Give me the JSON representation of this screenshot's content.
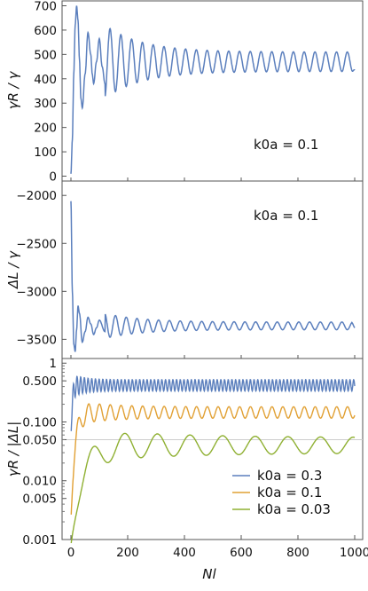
{
  "colors": {
    "blue": "#5b7fbd",
    "orange": "#e1a033",
    "green": "#8fb032",
    "frame": "#555555",
    "gridline": "#cccccc"
  },
  "chart_data": [
    {
      "type": "line",
      "ylabel": "γR / γ",
      "annotation": "k0a = 0.1",
      "xlim": [
        0,
        1000
      ],
      "ylim": [
        -20,
        720
      ],
      "yticks": [
        0,
        100,
        200,
        300,
        400,
        500,
        600,
        700
      ],
      "series": [
        {
          "color": "blue",
          "x": [
            0,
            5,
            10,
            15,
            20,
            25,
            30,
            35,
            40,
            50,
            60,
            70,
            75,
            80,
            90,
            100,
            110,
            120,
            130,
            140,
            150,
            160,
            180,
            200,
            220,
            240,
            260,
            280,
            300,
            400,
            500,
            600,
            700,
            800,
            900,
            1000
          ],
          "y": [
            10,
            150,
            420,
            620,
            700,
            640,
            480,
            320,
            280,
            420,
            590,
            500,
            420,
            380,
            470,
            565,
            450,
            380,
            430,
            545,
            470,
            390,
            520,
            420,
            540,
            400,
            520,
            420,
            520,
            510,
            510,
            500,
            500,
            510,
            500,
            435
          ],
          "oscillation": {
            "mean": 470,
            "amplitude_end": 40,
            "period": 38
          }
        }
      ]
    },
    {
      "type": "line",
      "ylabel": "ΔL / γ",
      "annotation": "k0a = 0.1",
      "xlim": [
        0,
        1000
      ],
      "ylim": [
        -3700,
        -1850
      ],
      "yticks": [
        -2000,
        -2500,
        -3000,
        -3500
      ],
      "series": [
        {
          "color": "blue",
          "x": [
            0,
            5,
            10,
            15,
            20,
            25,
            30,
            40,
            50,
            60,
            70,
            80,
            90,
            100,
            120,
            140,
            160,
            180,
            200,
            300,
            400,
            500,
            600,
            700,
            800,
            900,
            1000
          ],
          "y": [
            -2060,
            -3000,
            -3550,
            -3630,
            -3400,
            -3150,
            -3230,
            -3530,
            -3420,
            -3270,
            -3340,
            -3450,
            -3380,
            -3300,
            -3420,
            -3290,
            -3430,
            -3310,
            -3400,
            -3320,
            -3320,
            -3320,
            -3320,
            -3320,
            -3320,
            -3320,
            -3380
          ],
          "oscillation": {
            "mean": -3360,
            "amplitude_end": 40,
            "period": 38
          }
        }
      ]
    },
    {
      "type": "line",
      "ylabel": "γR / |ΔL|",
      "xlabel": "Nl",
      "xlim": [
        0,
        1000
      ],
      "yscale": "log",
      "ylim": [
        0.001,
        1.2
      ],
      "yticks": [
        0.001,
        0.005,
        0.01,
        0.05,
        0.1,
        0.5,
        1
      ],
      "ytick_labels": [
        "0.001",
        "0.005",
        "0.010",
        "0.050",
        "0.100",
        "0.500",
        "1"
      ],
      "xticks": [
        0,
        200,
        400,
        600,
        800,
        1000
      ],
      "reference_line": 0.05,
      "legend_position": "lower-right",
      "series": [
        {
          "name": "k0a = 0.3",
          "color": "blue",
          "mean": 0.42,
          "ratio": 1.25,
          "period": 13,
          "start": 0.05
        },
        {
          "name": "k0a = 0.1",
          "color": "orange",
          "mean": 0.145,
          "ratio": 1.25,
          "period": 38,
          "start": 0.002
        },
        {
          "name": "k0a = 0.03",
          "color": "green",
          "mean": 0.04,
          "ratio": 1.35,
          "period": 115,
          "start": 0.0008
        }
      ]
    }
  ]
}
